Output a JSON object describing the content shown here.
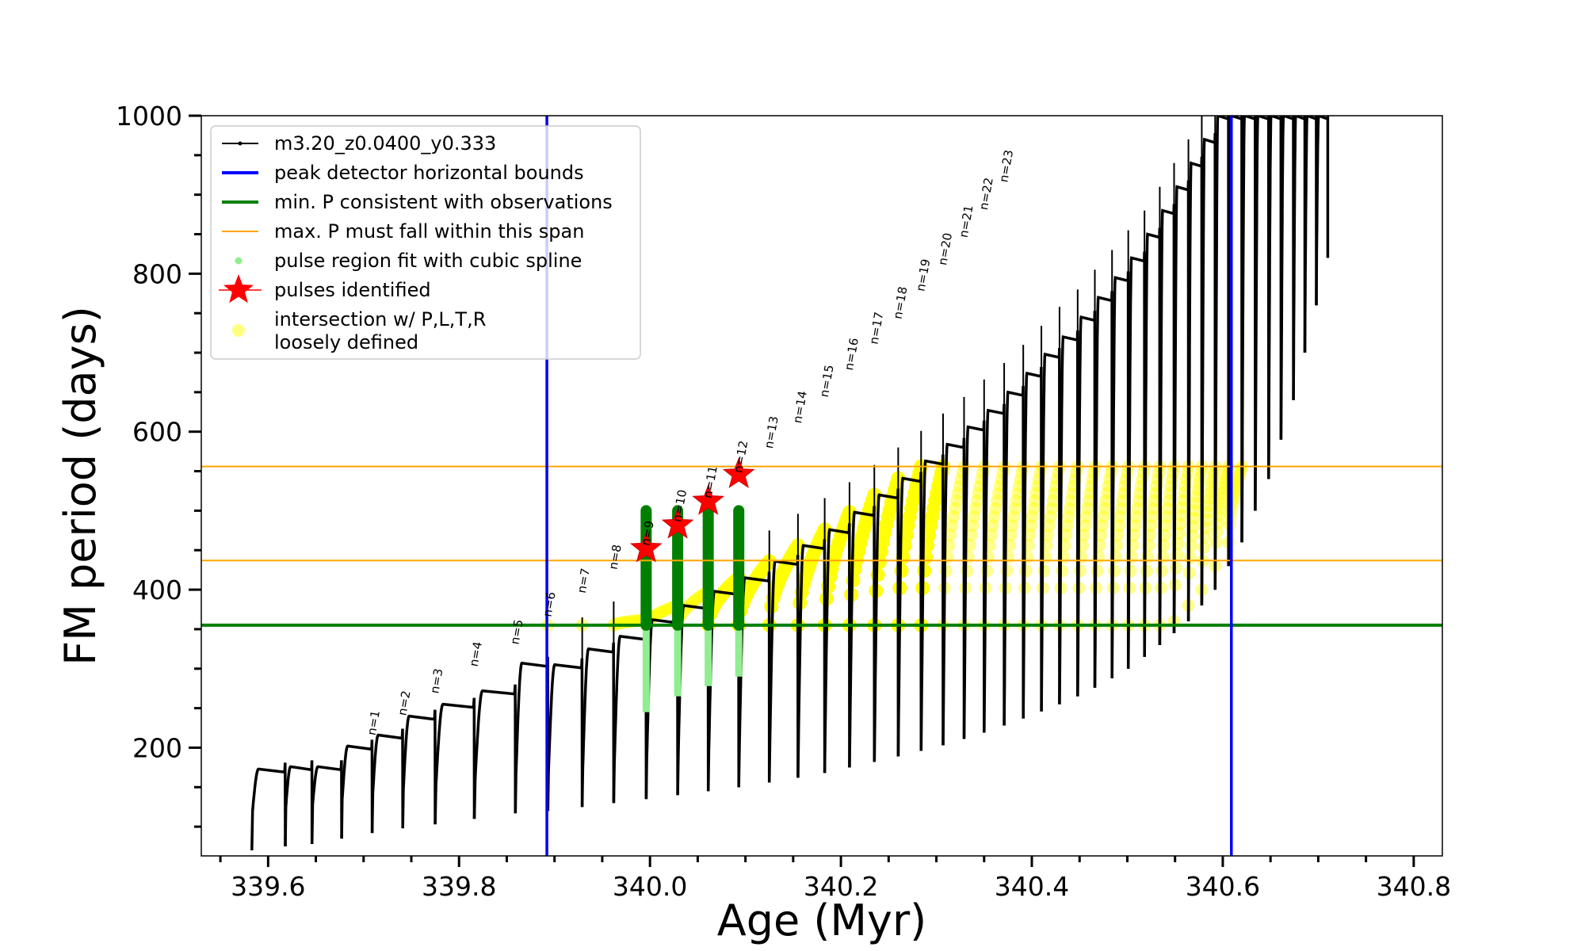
{
  "chart_data": {
    "type": "line",
    "title": "",
    "xlabel": "Age (Myr)",
    "ylabel": "FM period (days)",
    "xlim": [
      339.53,
      340.83
    ],
    "ylim": [
      63,
      1000
    ],
    "xticks": [
      339.6,
      339.8,
      340.0,
      340.2,
      340.4,
      340.6,
      340.8
    ],
    "xtick_labels": [
      "339.6",
      "339.8",
      "340.0",
      "340.2",
      "340.4",
      "340.6",
      "340.8"
    ],
    "yticks": [
      200,
      400,
      600,
      800,
      1000
    ],
    "ytick_labels": [
      "200",
      "400",
      "600",
      "800",
      "1000"
    ],
    "legend_position": "top-left",
    "grid": false,
    "colors": {
      "track": "#000000",
      "bounds": "#0000ff",
      "minP": "#008000",
      "maxP": "#ffa500",
      "spline": "#90ee90",
      "star": "#ff0000",
      "intersection": "#ffff00"
    },
    "legend": [
      {
        "label": "m3.20_z0.0400_y0.333",
        "kind": "track"
      },
      {
        "label": "peak detector horizontal bounds",
        "kind": "bounds"
      },
      {
        "label": "min. P consistent with observations",
        "kind": "minP"
      },
      {
        "label": "max. P must fall within this span",
        "kind": "maxP"
      },
      {
        "label": "pulse region fit with cubic spline",
        "kind": "spline"
      },
      {
        "label": "pulses identified",
        "kind": "star"
      },
      {
        "label": "intersection w/ P,L,T,R",
        "label2": "loosely defined",
        "kind": "intersection"
      }
    ],
    "vlines": [
      339.892,
      340.609
    ],
    "min_period": 355,
    "max_period_span": [
      437,
      556
    ],
    "pulse_ages": [
      339.583,
      339.618,
      339.646,
      339.677,
      339.709,
      339.741,
      339.775,
      339.816,
      339.859,
      339.893,
      339.929,
      339.962,
      339.996,
      340.029,
      340.061,
      340.093,
      340.125,
      340.155,
      340.183,
      340.209,
      340.235,
      340.26,
      340.284,
      340.307,
      340.329,
      340.35,
      340.371,
      340.391,
      340.41,
      340.429,
      340.448,
      340.466,
      340.484,
      340.501,
      340.518,
      340.534,
      340.549,
      340.564,
      340.578,
      340.592,
      340.606,
      340.62,
      340.634,
      340.648,
      340.661,
      340.674,
      340.686,
      340.698,
      340.71
    ],
    "pulse_peak_periods": [
      173,
      176,
      176,
      202,
      216,
      240,
      255,
      272,
      307,
      305,
      325,
      341,
      362,
      380,
      398,
      415,
      436,
      456,
      476,
      498,
      520,
      541,
      563,
      584,
      606,
      627,
      650,
      674,
      698,
      720,
      745,
      770,
      795,
      820,
      850,
      880,
      910,
      940,
      970,
      1000,
      1000,
      1000,
      1000,
      1000,
      1000,
      1000,
      1000,
      1000,
      1000
    ],
    "pulse_floor_periods": [
      70,
      75,
      78,
      85,
      92,
      98,
      103,
      110,
      117,
      120,
      125,
      130,
      135,
      140,
      145,
      150,
      156,
      162,
      168,
      175,
      182,
      189,
      196,
      203,
      211,
      219,
      228,
      237,
      246,
      255,
      265,
      276,
      288,
      300,
      315,
      330,
      345,
      360,
      380,
      400,
      430,
      460,
      500,
      540,
      590,
      640,
      700,
      760,
      820
    ],
    "pulse_labels": [
      "n=1",
      "n=2",
      "n=3",
      "n=4",
      "n=5",
      "n=6",
      "n=7",
      "n=8",
      "n=9",
      "n=10",
      "n=11",
      "n=12",
      "n=13",
      "n=14",
      "n=15",
      "n=16",
      "n=17",
      "n=18",
      "n=19",
      "n=20",
      "n=21",
      "n=22",
      "n=23"
    ],
    "pulse_label_ages": [
      339.709,
      339.741,
      339.775,
      339.816,
      339.859,
      339.893,
      339.929,
      339.962,
      339.996,
      340.029,
      340.061,
      340.093,
      340.125,
      340.155,
      340.183,
      340.209,
      340.235,
      340.26,
      340.284,
      340.307,
      340.329,
      340.35,
      340.371
    ],
    "pulse_label_periods": [
      215,
      240,
      268,
      302,
      330,
      365,
      395,
      425,
      455,
      485,
      515,
      547,
      578,
      610,
      643,
      677,
      710,
      742,
      777,
      810,
      845,
      880,
      915
    ],
    "spline_pulses": [
      {
        "age": 339.996,
        "p_low": 245,
        "p_high": 500
      },
      {
        "age": 340.029,
        "p_low": 265,
        "p_high": 500
      },
      {
        "age": 340.061,
        "p_low": 278,
        "p_high": 500
      },
      {
        "age": 340.093,
        "p_low": 290,
        "p_high": 500
      }
    ],
    "stars": [
      {
        "age": 339.996,
        "period": 452
      },
      {
        "age": 340.029,
        "period": 482
      },
      {
        "age": 340.061,
        "period": 512
      },
      {
        "age": 340.093,
        "period": 546
      }
    ]
  }
}
